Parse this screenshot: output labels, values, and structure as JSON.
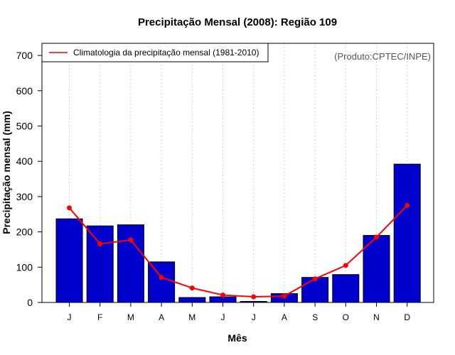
{
  "chart_data": {
    "type": "bar",
    "title": "Precipitação Mensal (2008): Região 109",
    "xlabel": "Mês",
    "ylabel": "Precipitação mensal (mm)",
    "ylim": [
      0,
      750
    ],
    "yticks": [
      0,
      100,
      200,
      300,
      400,
      500,
      600,
      700
    ],
    "categories": [
      "J",
      "F",
      "M",
      "A",
      "M",
      "J",
      "J",
      "A",
      "S",
      "O",
      "N",
      "D"
    ],
    "series": [
      {
        "name": "Precipitação mensal 2008",
        "kind": "bar",
        "color": "#0000cc",
        "values": [
          237,
          217,
          220,
          115,
          14,
          16,
          3,
          25,
          71,
          79,
          190,
          392
        ]
      },
      {
        "name": "Climatologia da precipitação mensal (1981-2010)",
        "kind": "line",
        "color": "#ff0000",
        "values": [
          268,
          166,
          177,
          71,
          41,
          21,
          16,
          18,
          67,
          105,
          185,
          275
        ]
      }
    ],
    "legend": {
      "position": "top-left",
      "label": "Climatologia da precipitação mensal (1981-2010)"
    },
    "annotation": "(Produto:CPTEC/INPE)",
    "grid": "vertical-dotted"
  }
}
